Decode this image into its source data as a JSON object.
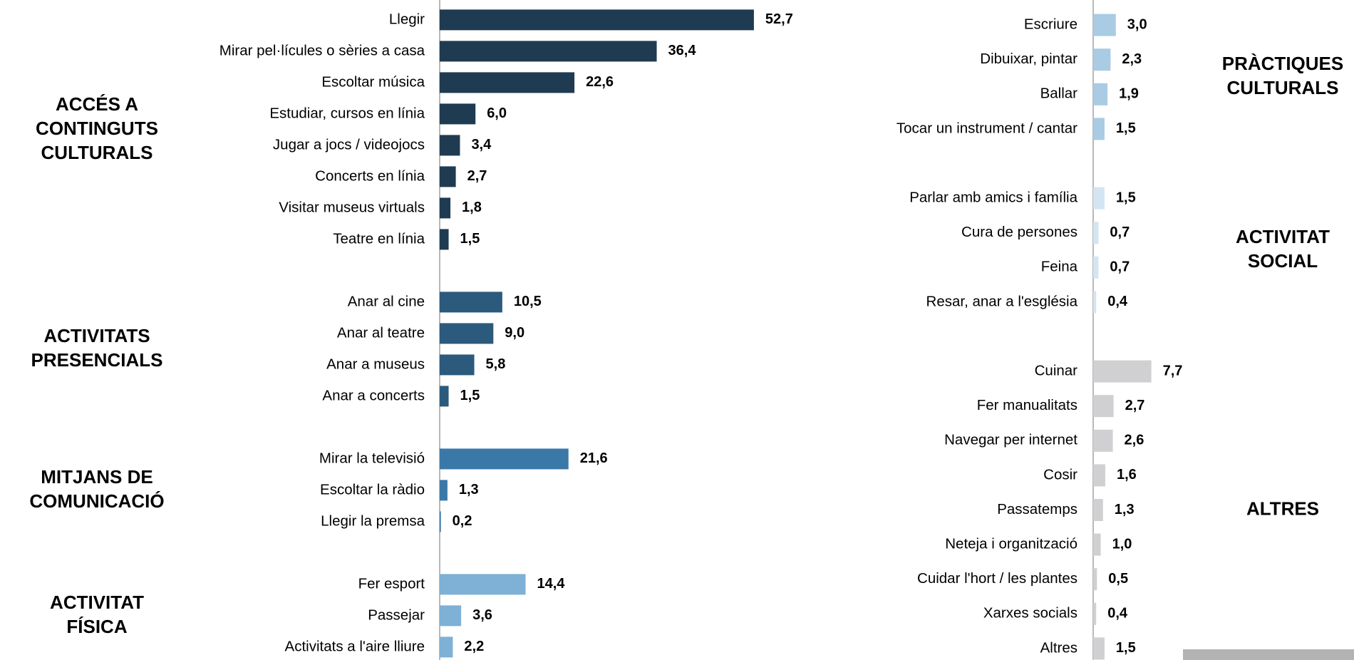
{
  "chart_data": [
    {
      "type": "bar",
      "orientation": "horizontal",
      "xlim": [
        0,
        60
      ],
      "groups": [
        {
          "title": [
            "ACCÉS A",
            "CONTINGUTS",
            "CULTURALS"
          ],
          "color": "#1f3b52",
          "categories": [
            "Llegir",
            "Mirar pel·lícules o sèries a casa",
            "Escoltar música",
            "Estudiar, cursos en línia",
            "Jugar a jocs / videojocs",
            "Concerts en línia",
            "Visitar museus virtuals",
            "Teatre en línia"
          ],
          "values": [
            52.7,
            36.4,
            22.6,
            6.0,
            3.4,
            2.7,
            1.8,
            1.5
          ],
          "value_labels": [
            "52,7",
            "36,4",
            "22,6",
            "6,0",
            "3,4",
            "2,7",
            "1,8",
            "1,5"
          ]
        },
        {
          "title": [
            "ACTIVITATS",
            "PRESENCIALS"
          ],
          "color": "#2b5a7d",
          "categories": [
            "Anar al cine",
            "Anar al teatre",
            "Anar a museus",
            "Anar a concerts"
          ],
          "values": [
            10.5,
            9.0,
            5.8,
            1.5
          ],
          "value_labels": [
            "10,5",
            "9,0",
            "5,8",
            "1,5"
          ]
        },
        {
          "title": [
            "MITJANS DE",
            "COMUNICACIÓ"
          ],
          "color": "#3a78a8",
          "categories": [
            "Mirar la televisió",
            "Escoltar la ràdio",
            "Llegir la premsa"
          ],
          "values": [
            21.6,
            1.3,
            0.2
          ],
          "value_labels": [
            "21,6",
            "1,3",
            "0,2"
          ]
        },
        {
          "title": [
            "ACTIVITAT",
            "FÍSICA"
          ],
          "color": "#7fb0d5",
          "categories": [
            "Fer esport",
            "Passejar",
            "Activitats a l'aire lliure"
          ],
          "values": [
            14.4,
            3.6,
            2.2
          ],
          "value_labels": [
            "14,4",
            "3,6",
            "2,2"
          ]
        }
      ]
    },
    {
      "type": "bar",
      "orientation": "horizontal",
      "xlim": [
        0,
        10
      ],
      "groups": [
        {
          "title": [
            "PRÀCTIQUES",
            "CULTURALS"
          ],
          "color": "#a9cbe4",
          "categories": [
            "Escriure",
            "Dibuixar, pintar",
            "Ballar",
            "Tocar un instrument / cantar"
          ],
          "values": [
            3.0,
            2.3,
            1.9,
            1.5
          ],
          "value_labels": [
            "3,0",
            "2,3",
            "1,9",
            "1,5"
          ]
        },
        {
          "title": [
            "ACTIVITAT",
            "SOCIAL"
          ],
          "color": "#d3e4f2",
          "categories": [
            "Parlar amb amics i família",
            "Cura de persones",
            "Feina",
            "Resar, anar a l'església"
          ],
          "values": [
            1.5,
            0.7,
            0.7,
            0.4
          ],
          "value_labels": [
            "1,5",
            "0,7",
            "0,7",
            "0,4"
          ]
        },
        {
          "title": [
            "ALTRES"
          ],
          "color": "#d0d0d2",
          "categories": [
            "Cuinar",
            "Fer manualitats",
            "Navegar per internet",
            "Cosir",
            "Passatemps",
            "Neteja i organització",
            "Cuidar l'hort / les plantes",
            "Xarxes socials",
            "Altres"
          ],
          "values": [
            7.7,
            2.7,
            2.6,
            1.6,
            1.3,
            1.0,
            0.5,
            0.4,
            1.5
          ],
          "value_labels": [
            "7,7",
            "2,7",
            "2,6",
            "1,6",
            "1,3",
            "1,0",
            "0,5",
            "0,4",
            "1,5"
          ]
        }
      ]
    }
  ]
}
